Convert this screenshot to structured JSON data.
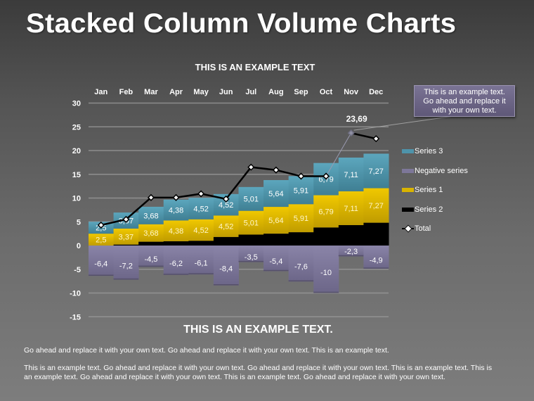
{
  "page": {
    "title": "Stacked Column Volume Charts",
    "chart_title": "THIS IS AN EXAMPLE TEXT",
    "callout": {
      "line1": "This is an example text.",
      "line2": "Go ahead and replace it",
      "line3": "with your own text."
    },
    "sub_heading": "THIS IS AN EXAMPLE TEXT.",
    "paragraph1": "Go ahead and replace it with your own text. Go ahead and replace it with your own text. This is an example text.",
    "paragraph2": "This is an example text. Go ahead and replace it with your own text. Go ahead and replace it with your own text. This is an example text. This is an example text. Go ahead and replace it with your own text. This is an example text. Go ahead and replace it with your own text."
  },
  "legend": [
    {
      "label": "Series 3",
      "color": "#4e93aa",
      "kind": "swatch"
    },
    {
      "label": "Negative series",
      "color": "#7d7799",
      "kind": "swatch"
    },
    {
      "label": "Series 1",
      "color": "#d9b400",
      "kind": "swatch"
    },
    {
      "label": "Series 2",
      "color": "#000000",
      "kind": "swatch"
    },
    {
      "label": "Total",
      "color": "#000000",
      "kind": "line"
    }
  ],
  "chart_data": {
    "type": "bar",
    "stacked": true,
    "title": "THIS IS AN EXAMPLE TEXT",
    "xlabel": "",
    "ylabel": "",
    "categories": [
      "Jan",
      "Feb",
      "Mar",
      "Apr",
      "May",
      "Jun",
      "Jul",
      "Aug",
      "Sep",
      "Oct",
      "Nov",
      "Dec"
    ],
    "x_tick_position": "top",
    "yticks": [
      30,
      25,
      20,
      15,
      10,
      5,
      0,
      -5,
      -10,
      -15
    ],
    "ylim": [
      -15,
      30
    ],
    "grid": true,
    "legend_position": "right",
    "series": [
      {
        "name": "Series 2",
        "color": "#000000",
        "values": [
          0,
          0.2,
          0.8,
          0.9,
          1.0,
          1.8,
          2.3,
          2.5,
          2.8,
          3.8,
          4.3,
          4.8
        ]
      },
      {
        "name": "Series 1",
        "color": "#d9b400",
        "values": [
          2.5,
          3.37,
          3.68,
          4.38,
          4.52,
          4.52,
          5.01,
          5.64,
          5.91,
          6.79,
          7.11,
          7.27
        ]
      },
      {
        "name": "Series 3",
        "color": "#4e93aa",
        "values": [
          2.5,
          3.37,
          3.68,
          4.38,
          4.52,
          4.52,
          5.01,
          5.64,
          5.91,
          6.79,
          7.11,
          7.27
        ]
      },
      {
        "name": "Negative series",
        "color": "#7d7799",
        "values": [
          -6.4,
          -7.2,
          -4.5,
          -6.2,
          -6.1,
          -8.4,
          -3.5,
          -5.4,
          -7.6,
          -10,
          -2.3,
          -4.9
        ]
      },
      {
        "name": "Total",
        "type": "line",
        "color": "#000000",
        "values": [
          4.3,
          5.5,
          10.1,
          10.1,
          10.9,
          9.8,
          16.5,
          15.9,
          14.6,
          14.6,
          23.69,
          22.5
        ]
      }
    ],
    "data_labels": {
      "Series 1": [
        "2,5",
        "3,37",
        "3,68",
        "4,38",
        "4,52",
        "4,52",
        "5,01",
        "5,64",
        "5,91",
        "6,79",
        "7,11",
        "7,27"
      ],
      "Series 3": [
        "2,5",
        "3,37",
        "3,68",
        "4,38",
        "4,52",
        "4,52",
        "5,01",
        "5,64",
        "5,91",
        "6,79",
        "7,11",
        "7,27"
      ],
      "Negative series": [
        "-6,4",
        "-7,2",
        "-4,5",
        "-6,2",
        "-6,1",
        "-8,4",
        "-3,5",
        "-5,4",
        "-7,6",
        "-10",
        "-2,3",
        "-4,9"
      ],
      "Total_highlight": {
        "category": "Nov",
        "label": "23,69"
      }
    },
    "annotations": [
      "This is an example text. Go ahead and replace it with your own text."
    ]
  }
}
